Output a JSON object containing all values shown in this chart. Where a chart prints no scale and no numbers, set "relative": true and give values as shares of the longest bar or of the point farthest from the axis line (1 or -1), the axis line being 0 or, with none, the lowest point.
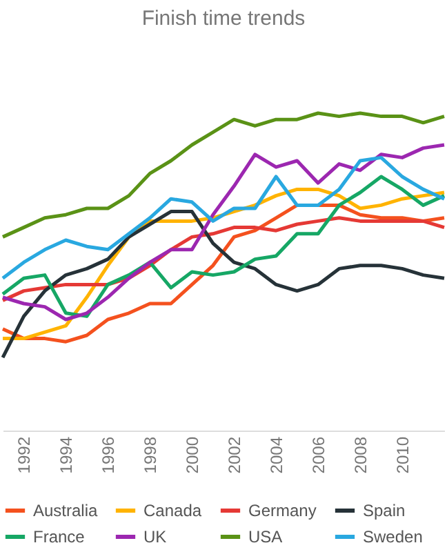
{
  "chart_data": {
    "type": "line",
    "title": "Finish time trends",
    "relative": true,
    "x": [
      1991,
      1992,
      1993,
      1994,
      1995,
      1996,
      1997,
      1998,
      1999,
      2000,
      2001,
      2002,
      2003,
      2004,
      2005,
      2006,
      2007,
      2008,
      2009,
      2010,
      2011,
      2012
    ],
    "xlim": [
      1991,
      2012
    ],
    "xticks": [
      1992,
      1994,
      1996,
      1998,
      2000,
      2002,
      2004,
      2006,
      2008,
      2010
    ],
    "grid": false,
    "legend": "bottom",
    "marker": "none",
    "line_style": "solid",
    "series": [
      {
        "name": "Australia",
        "color": "#f4511e",
        "values": [
          0.32,
          0.29,
          0.29,
          0.28,
          0.3,
          0.35,
          0.37,
          0.4,
          0.4,
          0.46,
          0.52,
          0.61,
          0.63,
          0.67,
          0.71,
          0.71,
          0.71,
          0.68,
          0.67,
          0.67,
          0.66,
          0.67
        ]
      },
      {
        "name": "Canada",
        "color": "#ffb300",
        "values": [
          0.29,
          0.29,
          0.31,
          0.33,
          0.42,
          0.52,
          0.61,
          0.66,
          0.66,
          0.66,
          0.67,
          0.69,
          0.71,
          0.74,
          0.76,
          0.76,
          0.74,
          0.7,
          0.71,
          0.73,
          0.74,
          0.75
        ]
      },
      {
        "name": "Germany",
        "color": "#e53935",
        "values": [
          0.41,
          0.44,
          0.45,
          0.46,
          0.46,
          0.46,
          0.48,
          0.52,
          0.57,
          0.61,
          0.62,
          0.64,
          0.64,
          0.63,
          0.65,
          0.66,
          0.67,
          0.66,
          0.66,
          0.66,
          0.66,
          0.64
        ]
      },
      {
        "name": "Spain",
        "color": "#263238",
        "values": [
          0.23,
          0.36,
          0.44,
          0.49,
          0.51,
          0.54,
          0.61,
          0.65,
          0.69,
          0.69,
          0.59,
          0.53,
          0.51,
          0.46,
          0.44,
          0.46,
          0.51,
          0.52,
          0.52,
          0.51,
          0.49,
          0.48
        ]
      },
      {
        "name": "France",
        "color": "#16a765",
        "values": [
          0.43,
          0.48,
          0.49,
          0.37,
          0.36,
          0.46,
          0.49,
          0.53,
          0.45,
          0.5,
          0.49,
          0.5,
          0.54,
          0.55,
          0.62,
          0.62,
          0.71,
          0.75,
          0.8,
          0.76,
          0.71,
          0.74
        ]
      },
      {
        "name": "UK",
        "color": "#9c27b0",
        "values": [
          0.42,
          0.4,
          0.39,
          0.35,
          0.37,
          0.42,
          0.48,
          0.53,
          0.57,
          0.57,
          0.68,
          0.77,
          0.87,
          0.83,
          0.85,
          0.78,
          0.84,
          0.82,
          0.87,
          0.86,
          0.89,
          0.9
        ]
      },
      {
        "name": "USA",
        "color": "#5a9216",
        "values": [
          0.61,
          0.64,
          0.67,
          0.68,
          0.7,
          0.7,
          0.74,
          0.81,
          0.85,
          0.9,
          0.94,
          0.98,
          0.96,
          0.98,
          0.98,
          1.0,
          0.99,
          1.0,
          0.99,
          0.99,
          0.97,
          0.99
        ]
      },
      {
        "name": "Sweden",
        "color": "#29a8e0",
        "values": [
          0.48,
          0.53,
          0.57,
          0.6,
          0.58,
          0.57,
          0.62,
          0.67,
          0.73,
          0.72,
          0.66,
          0.7,
          0.7,
          0.8,
          0.71,
          0.71,
          0.76,
          0.85,
          0.86,
          0.8,
          0.76,
          0.73
        ]
      }
    ]
  }
}
